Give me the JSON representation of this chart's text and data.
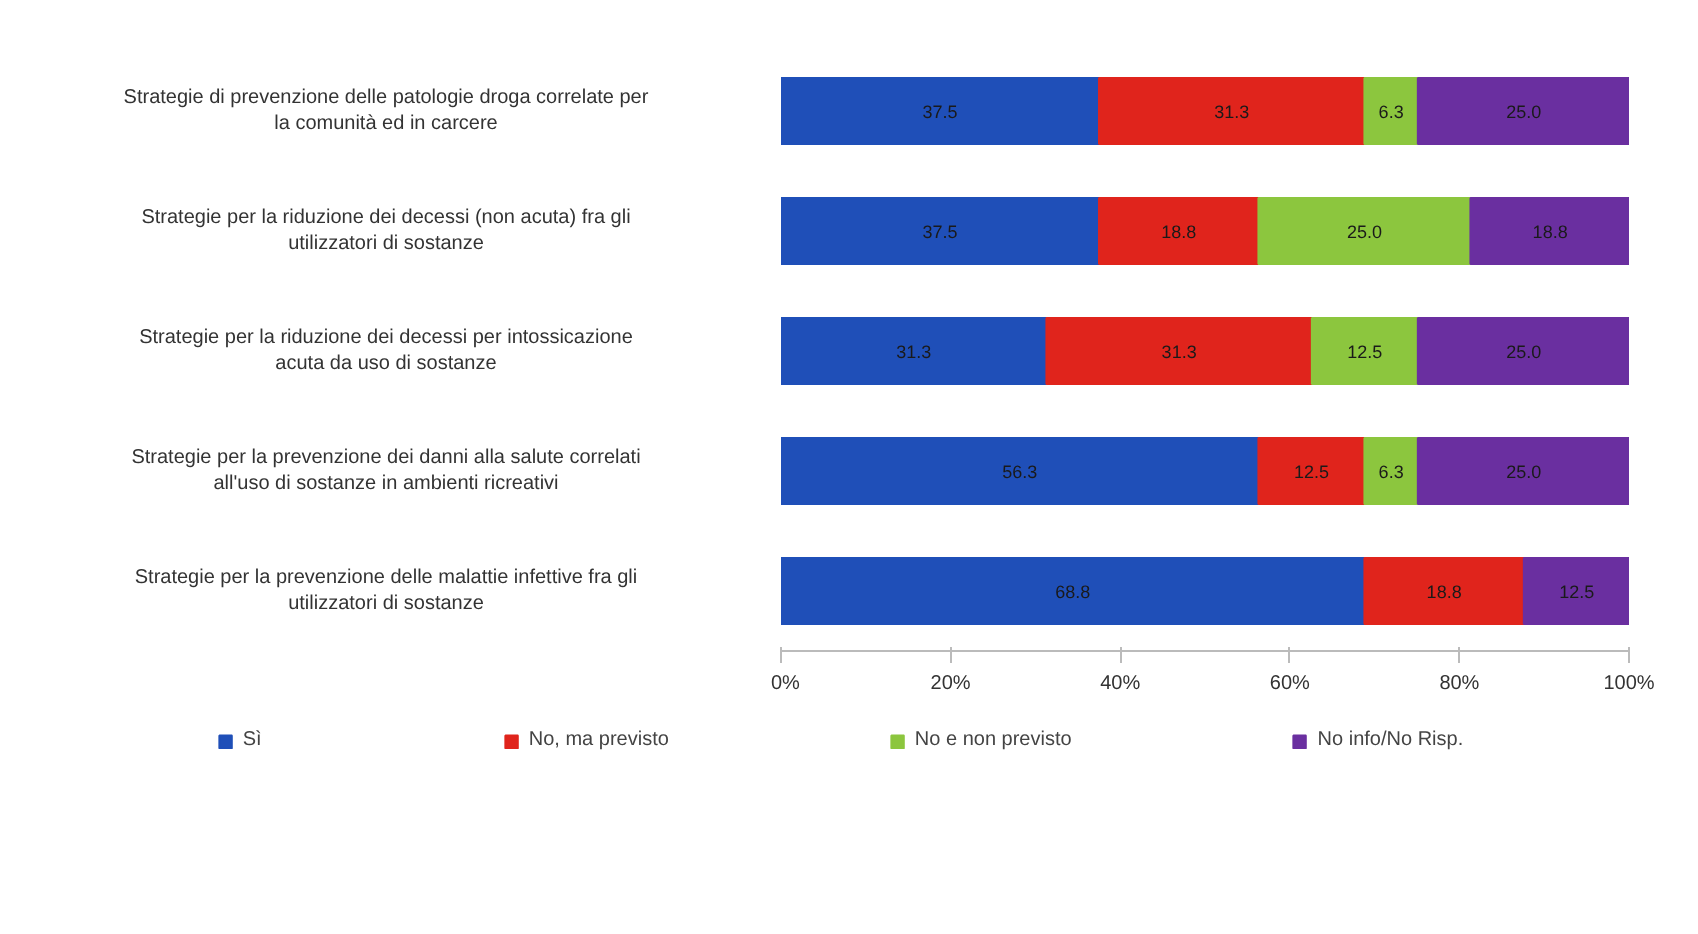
{
  "chart_data": {
    "type": "bar",
    "orientation": "horizontal",
    "stacked": true,
    "legend": "bottom",
    "grid": false,
    "categories": [
      "Strategie di prevenzione delle patologie droga correlate per la comunità ed in carcere",
      "Strategie per la riduzione dei decessi (non acuta) fra gli utilizzatori di sostanze",
      "Strategie per la riduzione dei decessi per intossicazione acuta da uso di sostanze",
      "Strategie per la prevenzione dei danni alla salute correlati all'uso di sostanze in ambienti ricreativi",
      "Strategie per la prevenzione delle malattie infettive fra gli utilizzatori di sostanze"
    ],
    "series": [
      {
        "name": "Sì",
        "color": "#1f4fb8",
        "values": [
          37.5,
          37.5,
          31.3,
          56.3,
          68.8
        ],
        "value_labels": [
          "37.5",
          "37.5",
          "31.3",
          "56.3",
          "68.8"
        ]
      },
      {
        "name": "No, ma previsto",
        "color": "#e0241c",
        "values": [
          31.3,
          18.8,
          31.3,
          12.5,
          18.8
        ],
        "value_labels": [
          "31.3",
          "18.8",
          "31.3",
          "12.5",
          "18.8"
        ]
      },
      {
        "name": "No e non previsto",
        "color": "#8cc63e",
        "values": [
          6.3,
          25.0,
          12.5,
          6.3,
          null
        ],
        "value_labels": [
          "6.3",
          "25.0",
          "12.5",
          "6.3",
          null
        ]
      },
      {
        "name": "No info/No Risp.",
        "color": "#6a2fa0",
        "values": [
          25.0,
          18.8,
          25.0,
          25.0,
          12.5
        ],
        "value_labels": [
          "25.0",
          "18.8",
          "25.0",
          "25.0",
          "12.5"
        ]
      }
    ],
    "xlim": [
      0,
      100
    ],
    "xticks": [
      {
        "value": 0,
        "label": "0%"
      },
      {
        "value": 20,
        "label": "20%"
      },
      {
        "value": 40,
        "label": "40%"
      },
      {
        "value": 60,
        "label": "60%"
      },
      {
        "value": 80,
        "label": "80%"
      },
      {
        "value": 100,
        "label": "100%"
      }
    ]
  }
}
